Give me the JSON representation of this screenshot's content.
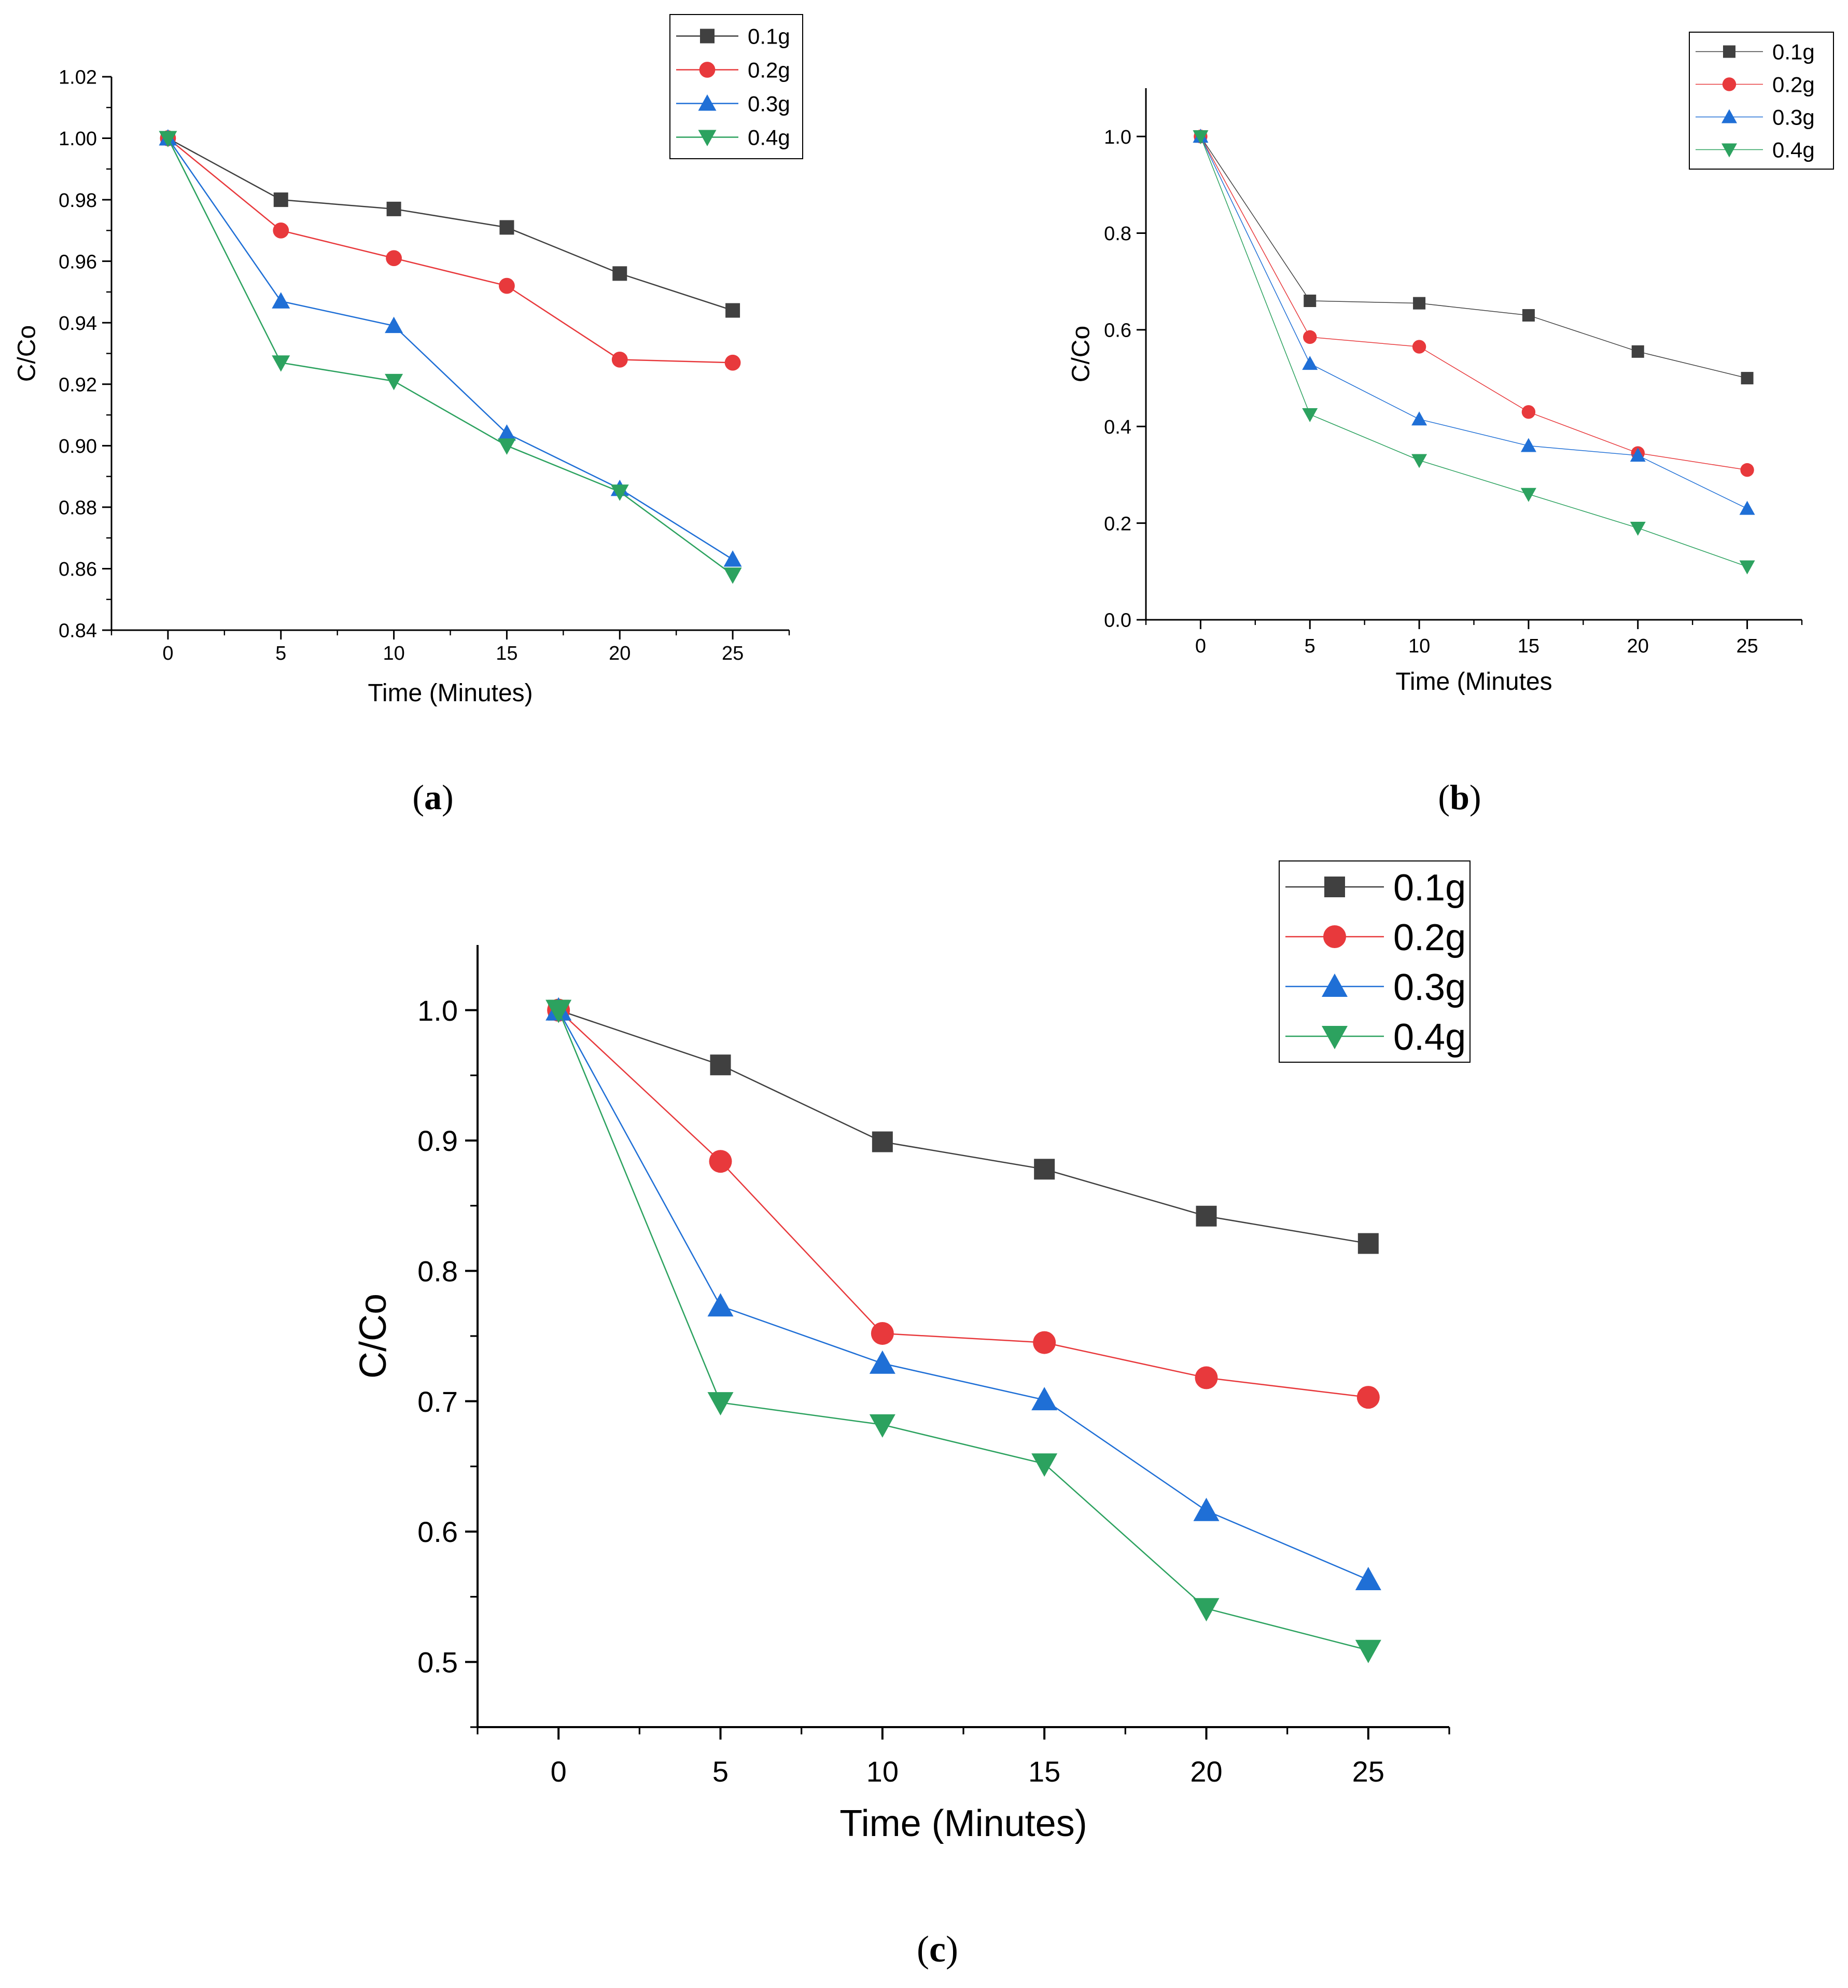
{
  "colors": {
    "series": [
      "#404040",
      "#e8393c",
      "#1f6fd6",
      "#2ca25f"
    ]
  },
  "markers": [
    "square",
    "circle",
    "triangle-up",
    "triangle-down"
  ],
  "chart_data": [
    {
      "type": "line",
      "caption": {
        "open": "(",
        "letter": "a",
        "close": ")"
      },
      "xlabel": "Time (Minutes)",
      "ylabel": "C/Co",
      "xlim": [
        -2.5,
        27.5
      ],
      "ylim": [
        0.84,
        1.02
      ],
      "x_ticks": [
        0,
        5,
        10,
        15,
        20,
        25
      ],
      "y_ticks": [
        "0.84",
        "0.86",
        "0.88",
        "0.90",
        "0.92",
        "0.94",
        "0.96",
        "0.98",
        "1.00",
        "1.02"
      ],
      "x": [
        0,
        5,
        10,
        15,
        20,
        25
      ],
      "series": [
        {
          "name": "0.1g",
          "values": [
            1.0,
            0.98,
            0.977,
            0.971,
            0.956,
            0.944
          ]
        },
        {
          "name": "0.2g",
          "values": [
            1.0,
            0.97,
            0.961,
            0.952,
            0.928,
            0.927
          ]
        },
        {
          "name": "0.3g",
          "values": [
            1.0,
            0.947,
            0.939,
            0.904,
            0.886,
            0.863
          ]
        },
        {
          "name": "0.4g",
          "values": [
            1.0,
            0.927,
            0.921,
            0.9,
            0.885,
            0.858
          ]
        }
      ],
      "legend_position": "top-right"
    },
    {
      "type": "line",
      "caption": {
        "open": "(",
        "letter": "b",
        "close": ")"
      },
      "xlabel": "Time (Minutes",
      "ylabel": "C/Co",
      "xlim": [
        -2.5,
        27.5
      ],
      "ylim": [
        0.0,
        1.1
      ],
      "x_ticks": [
        0,
        5,
        10,
        15,
        20,
        25
      ],
      "y_ticks": [
        "0.0",
        "0.2",
        "0.4",
        "0.6",
        "0.8",
        "1.0"
      ],
      "x": [
        0,
        5,
        10,
        15,
        20,
        25
      ],
      "series": [
        {
          "name": "0.1g",
          "values": [
            1.0,
            0.66,
            0.655,
            0.63,
            0.555,
            0.5
          ]
        },
        {
          "name": "0.2g",
          "values": [
            1.0,
            0.585,
            0.565,
            0.43,
            0.345,
            0.31
          ]
        },
        {
          "name": "0.3g",
          "values": [
            1.0,
            0.53,
            0.415,
            0.36,
            0.34,
            0.23
          ]
        },
        {
          "name": "0.4g",
          "values": [
            1.0,
            0.425,
            0.33,
            0.26,
            0.19,
            0.11
          ]
        }
      ],
      "legend_position": "top-right"
    },
    {
      "type": "line",
      "caption": {
        "open": "(",
        "letter": "c",
        "close": ")"
      },
      "xlabel": "Time (Minutes)",
      "ylabel": "C/Co",
      "xlim": [
        -2.5,
        27.5
      ],
      "ylim": [
        0.45,
        1.05
      ],
      "x_ticks": [
        0,
        5,
        10,
        15,
        20,
        25
      ],
      "y_ticks": [
        "0.5",
        "0.6",
        "0.7",
        "0.8",
        "0.9",
        "1.0"
      ],
      "x": [
        0,
        5,
        10,
        15,
        20,
        25
      ],
      "series": [
        {
          "name": "0.1g",
          "values": [
            1.0,
            0.958,
            0.899,
            0.878,
            0.842,
            0.821
          ]
        },
        {
          "name": "0.2g",
          "values": [
            1.0,
            0.884,
            0.752,
            0.745,
            0.718,
            0.703
          ]
        },
        {
          "name": "0.3g",
          "values": [
            1.0,
            0.773,
            0.729,
            0.701,
            0.616,
            0.563
          ]
        },
        {
          "name": "0.4g",
          "values": [
            1.0,
            0.699,
            0.682,
            0.652,
            0.541,
            0.509
          ]
        }
      ],
      "legend_position": "top-right"
    }
  ]
}
